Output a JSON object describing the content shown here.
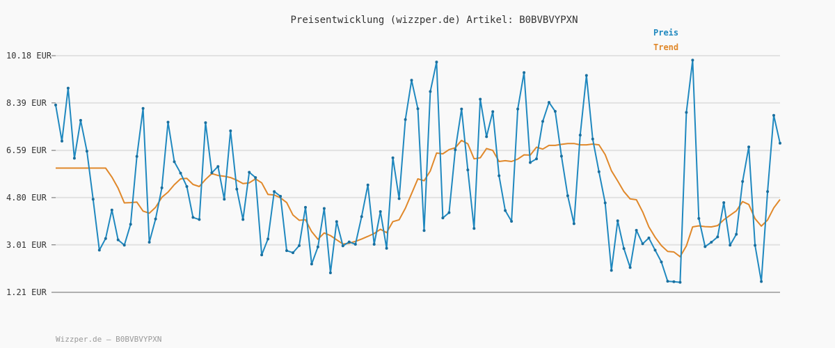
{
  "footer": "Wizzper.de – B0BVBVYPXN",
  "chart_data": {
    "type": "line",
    "title": "Preisentwicklung (wizzper.de) Artikel: B0BVBVYPXN",
    "xlabel": "",
    "ylabel": "",
    "yticks": [
      1.21,
      3.01,
      4.8,
      6.59,
      8.39,
      10.18
    ],
    "ytick_labels": [
      "1.21 EUR",
      "3.01 EUR",
      "4.80 EUR",
      "6.59 EUR",
      "8.39 EUR",
      "10.18 EUR"
    ],
    "ylim": [
      1.21,
      10.18
    ],
    "grid": true,
    "legend_position": "top-right",
    "series": [
      {
        "name": "Preis",
        "color": "#1f88bf",
        "markers": true,
        "values": [
          8.31,
          6.94,
          8.95,
          6.29,
          7.73,
          6.56,
          4.74,
          2.81,
          3.25,
          4.33,
          3.2,
          3.0,
          3.79,
          6.36,
          8.18,
          3.11,
          3.99,
          5.17,
          7.66,
          6.16,
          5.73,
          5.22,
          4.05,
          3.97,
          7.64,
          5.74,
          5.98,
          4.74,
          7.33,
          5.12,
          3.97,
          5.76,
          5.56,
          2.63,
          3.23,
          5.03,
          4.85,
          2.79,
          2.71,
          2.98,
          4.43,
          2.28,
          2.93,
          4.39,
          1.95,
          3.89,
          2.97,
          3.12,
          3.03,
          4.08,
          5.28,
          3.03,
          4.27,
          2.88,
          6.31,
          4.76,
          7.76,
          9.25,
          8.17,
          3.55,
          8.82,
          9.94,
          4.03,
          4.23,
          6.61,
          8.16,
          5.85,
          3.63,
          8.53,
          7.11,
          8.06,
          5.63,
          4.31,
          3.9,
          8.16,
          9.54,
          6.13,
          6.27,
          7.69,
          8.41,
          8.07,
          6.37,
          4.87,
          3.81,
          7.17,
          9.43,
          7.02,
          5.78,
          4.6,
          2.04,
          3.92,
          2.87,
          2.15,
          3.56,
          3.05,
          3.27,
          2.81,
          2.36,
          1.63,
          1.61,
          1.59,
          8.03,
          10.01,
          4.01,
          2.94,
          3.11,
          3.31,
          4.61,
          3.0,
          3.41,
          5.41,
          6.72,
          2.99,
          1.62,
          5.03,
          7.92,
          6.86
        ]
      },
      {
        "name": "Trend",
        "color": "#e0882a",
        "markers": false,
        "values": [
          5.92,
          5.92,
          5.92,
          5.92,
          5.92,
          5.92,
          5.92,
          5.92,
          5.92,
          5.58,
          5.16,
          4.6,
          4.61,
          4.63,
          4.29,
          4.21,
          4.43,
          4.81,
          5.01,
          5.29,
          5.51,
          5.53,
          5.3,
          5.22,
          5.49,
          5.71,
          5.64,
          5.61,
          5.56,
          5.46,
          5.33,
          5.36,
          5.51,
          5.36,
          4.92,
          4.9,
          4.79,
          4.61,
          4.14,
          3.94,
          3.96,
          3.51,
          3.22,
          3.46,
          3.36,
          3.2,
          3.04,
          3.07,
          3.14,
          3.23,
          3.33,
          3.44,
          3.6,
          3.47,
          3.89,
          3.96,
          4.4,
          4.95,
          5.51,
          5.44,
          5.81,
          6.49,
          6.46,
          6.62,
          6.69,
          6.97,
          6.84,
          6.27,
          6.31,
          6.66,
          6.59,
          6.17,
          6.2,
          6.17,
          6.26,
          6.42,
          6.41,
          6.71,
          6.64,
          6.78,
          6.78,
          6.82,
          6.85,
          6.85,
          6.8,
          6.8,
          6.83,
          6.8,
          6.43,
          5.82,
          5.43,
          5.03,
          4.75,
          4.72,
          4.26,
          3.69,
          3.3,
          2.98,
          2.76,
          2.74,
          2.56,
          2.97,
          3.69,
          3.73,
          3.7,
          3.69,
          3.74,
          3.96,
          4.13,
          4.3,
          4.65,
          4.54,
          4.0,
          3.72,
          3.95,
          4.41,
          4.73
        ]
      }
    ]
  }
}
